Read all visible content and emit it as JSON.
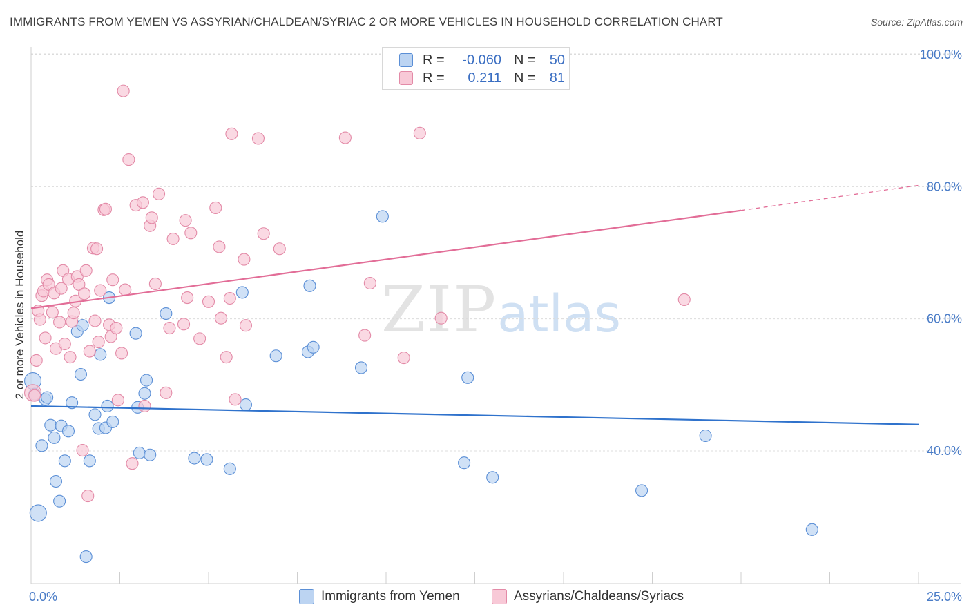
{
  "title": "IMMIGRANTS FROM YEMEN VS ASSYRIAN/CHALDEAN/SYRIAC 2 OR MORE VEHICLES IN HOUSEHOLD CORRELATION CHART",
  "source": "Source: ZipAtlas.com",
  "watermark": {
    "zip": "ZIP",
    "atlas": "atlas"
  },
  "legend": {
    "rows": [
      {
        "r_label": "R =",
        "r_value": "-0.060",
        "n_label": "N =",
        "n_value": "50",
        "fill": "#bcd4f2",
        "stroke": "#5b8fd6"
      },
      {
        "r_label": "R =",
        "r_value": "0.211",
        "n_label": "N =",
        "n_value": "81",
        "fill": "#f8c9d7",
        "stroke": "#e38aa7"
      }
    ]
  },
  "bottom_legend": {
    "series1": "Immigrants from Yemen",
    "series2": "Assyrians/Chaldeans/Syriacs"
  },
  "colors": {
    "blue_fill": "#bcd4f2",
    "blue_stroke": "#5b8fd6",
    "blue_line": "#2f72cc",
    "pink_fill": "#f8c9d7",
    "pink_stroke": "#e38aa7",
    "pink_line": "#e26d97",
    "tick_text": "#4a7cc7",
    "grid": "#dcdcdc"
  },
  "chart_data": {
    "type": "scatter",
    "title": "IMMIGRANTS FROM YEMEN VS ASSYRIAN/CHALDEAN/SYRIAC 2 OR MORE VEHICLES IN HOUSEHOLD CORRELATION CHART",
    "xlabel": "",
    "ylabel": "2 or more Vehicles in Household",
    "xlim": [
      0,
      25
    ],
    "ylim": [
      20,
      102
    ],
    "x_tick_labels": [
      {
        "value": 0,
        "label": "0.0%"
      },
      {
        "value": 25,
        "label": "25.0%"
      }
    ],
    "x_minor_ticks": [
      2.5,
      5,
      7.5,
      10,
      12.5,
      15,
      17.5,
      20,
      22.5,
      25
    ],
    "y_ticks": [
      {
        "value": 40,
        "label": "40.0%"
      },
      {
        "value": 60,
        "label": "60.0%"
      },
      {
        "value": 80,
        "label": "80.0%"
      },
      {
        "value": 100,
        "label": "100.0%"
      }
    ],
    "series": [
      {
        "name": "Immigrants from Yemen",
        "color": "#5b8fd6",
        "trend": {
          "x": [
            0,
            25
          ],
          "y": [
            46.8,
            44.0
          ]
        },
        "points": [
          {
            "x": 0.05,
            "y": 50.6,
            "big": true
          },
          {
            "x": 0.1,
            "y": 48.6
          },
          {
            "x": 0.2,
            "y": 30.6,
            "big": true
          },
          {
            "x": 0.3,
            "y": 40.8
          },
          {
            "x": 0.4,
            "y": 47.8
          },
          {
            "x": 0.45,
            "y": 48.1
          },
          {
            "x": 0.55,
            "y": 43.9
          },
          {
            "x": 0.65,
            "y": 42.0
          },
          {
            "x": 0.7,
            "y": 35.4
          },
          {
            "x": 0.8,
            "y": 32.4
          },
          {
            "x": 0.85,
            "y": 43.8
          },
          {
            "x": 0.95,
            "y": 38.5
          },
          {
            "x": 1.05,
            "y": 43.0
          },
          {
            "x": 1.15,
            "y": 47.3
          },
          {
            "x": 1.3,
            "y": 58.1
          },
          {
            "x": 1.4,
            "y": 51.6
          },
          {
            "x": 1.45,
            "y": 59.0
          },
          {
            "x": 1.55,
            "y": 24.0
          },
          {
            "x": 1.65,
            "y": 38.5
          },
          {
            "x": 1.8,
            "y": 45.5
          },
          {
            "x": 1.9,
            "y": 43.4
          },
          {
            "x": 1.95,
            "y": 54.6
          },
          {
            "x": 2.1,
            "y": 43.5
          },
          {
            "x": 2.15,
            "y": 46.8
          },
          {
            "x": 2.2,
            "y": 63.2
          },
          {
            "x": 2.3,
            "y": 44.4
          },
          {
            "x": 2.95,
            "y": 57.8
          },
          {
            "x": 3.0,
            "y": 46.6
          },
          {
            "x": 3.05,
            "y": 39.7
          },
          {
            "x": 3.2,
            "y": 48.7
          },
          {
            "x": 3.25,
            "y": 50.7
          },
          {
            "x": 3.35,
            "y": 39.4
          },
          {
            "x": 3.8,
            "y": 60.8
          },
          {
            "x": 4.6,
            "y": 38.9
          },
          {
            "x": 4.95,
            "y": 38.7
          },
          {
            "x": 5.6,
            "y": 37.3
          },
          {
            "x": 5.95,
            "y": 64.0
          },
          {
            "x": 6.05,
            "y": 47.0
          },
          {
            "x": 6.9,
            "y": 54.4
          },
          {
            "x": 7.8,
            "y": 55.0
          },
          {
            "x": 7.85,
            "y": 65.0
          },
          {
            "x": 7.95,
            "y": 55.7
          },
          {
            "x": 9.3,
            "y": 52.6
          },
          {
            "x": 9.9,
            "y": 75.5
          },
          {
            "x": 12.2,
            "y": 38.2
          },
          {
            "x": 12.3,
            "y": 51.1
          },
          {
            "x": 13.0,
            "y": 36.0
          },
          {
            "x": 17.2,
            "y": 34.0
          },
          {
            "x": 19.0,
            "y": 42.3
          },
          {
            "x": 22.0,
            "y": 28.1
          }
        ]
      },
      {
        "name": "Assyrians/Chaldeans/Syriacs",
        "color": "#e38aa7",
        "trend": {
          "x": [
            0,
            20
          ],
          "y": [
            61.6,
            76.4
          ]
        },
        "trend_dashed": {
          "x": [
            20,
            25
          ],
          "y": [
            76.4,
            80.2
          ]
        },
        "points": [
          {
            "x": 0.05,
            "y": 48.8,
            "big": true
          },
          {
            "x": 0.15,
            "y": 53.7
          },
          {
            "x": 0.2,
            "y": 61.2
          },
          {
            "x": 0.25,
            "y": 59.9
          },
          {
            "x": 0.3,
            "y": 63.5
          },
          {
            "x": 0.35,
            "y": 64.2
          },
          {
            "x": 0.4,
            "y": 57.1
          },
          {
            "x": 0.45,
            "y": 65.9
          },
          {
            "x": 0.5,
            "y": 65.2
          },
          {
            "x": 0.6,
            "y": 61.0
          },
          {
            "x": 0.65,
            "y": 63.9
          },
          {
            "x": 0.7,
            "y": 55.5
          },
          {
            "x": 0.8,
            "y": 59.5
          },
          {
            "x": 0.85,
            "y": 64.6
          },
          {
            "x": 0.9,
            "y": 67.3
          },
          {
            "x": 0.95,
            "y": 56.2
          },
          {
            "x": 1.05,
            "y": 66.0
          },
          {
            "x": 1.1,
            "y": 54.2
          },
          {
            "x": 1.15,
            "y": 59.6
          },
          {
            "x": 1.2,
            "y": 60.9
          },
          {
            "x": 1.25,
            "y": 62.7
          },
          {
            "x": 1.3,
            "y": 66.4
          },
          {
            "x": 1.35,
            "y": 65.2
          },
          {
            "x": 1.45,
            "y": 40.1
          },
          {
            "x": 1.5,
            "y": 63.8
          },
          {
            "x": 1.55,
            "y": 67.3
          },
          {
            "x": 1.6,
            "y": 33.2
          },
          {
            "x": 1.65,
            "y": 55.1
          },
          {
            "x": 1.75,
            "y": 70.7
          },
          {
            "x": 1.8,
            "y": 59.7
          },
          {
            "x": 1.85,
            "y": 70.6
          },
          {
            "x": 1.9,
            "y": 56.5
          },
          {
            "x": 1.95,
            "y": 64.3
          },
          {
            "x": 2.05,
            "y": 76.5
          },
          {
            "x": 2.1,
            "y": 76.6
          },
          {
            "x": 2.2,
            "y": 59.1
          },
          {
            "x": 2.25,
            "y": 57.3
          },
          {
            "x": 2.3,
            "y": 65.9
          },
          {
            "x": 2.4,
            "y": 58.6
          },
          {
            "x": 2.45,
            "y": 47.7
          },
          {
            "x": 2.55,
            "y": 54.8
          },
          {
            "x": 2.6,
            "y": 94.5
          },
          {
            "x": 2.65,
            "y": 64.4
          },
          {
            "x": 2.75,
            "y": 84.1
          },
          {
            "x": 2.85,
            "y": 38.1
          },
          {
            "x": 2.95,
            "y": 77.2
          },
          {
            "x": 3.15,
            "y": 77.6
          },
          {
            "x": 3.2,
            "y": 46.8
          },
          {
            "x": 3.35,
            "y": 74.1
          },
          {
            "x": 3.4,
            "y": 75.3
          },
          {
            "x": 3.5,
            "y": 65.3
          },
          {
            "x": 3.6,
            "y": 78.9
          },
          {
            "x": 3.8,
            "y": 48.8
          },
          {
            "x": 3.9,
            "y": 58.6
          },
          {
            "x": 4.0,
            "y": 72.1
          },
          {
            "x": 4.3,
            "y": 59.2
          },
          {
            "x": 4.35,
            "y": 74.9
          },
          {
            "x": 4.4,
            "y": 63.2
          },
          {
            "x": 4.5,
            "y": 73.0
          },
          {
            "x": 4.75,
            "y": 57.0
          },
          {
            "x": 5.0,
            "y": 62.6
          },
          {
            "x": 5.2,
            "y": 76.8
          },
          {
            "x": 5.3,
            "y": 70.9
          },
          {
            "x": 5.35,
            "y": 60.1
          },
          {
            "x": 5.5,
            "y": 54.2
          },
          {
            "x": 5.6,
            "y": 63.1
          },
          {
            "x": 5.65,
            "y": 88.0
          },
          {
            "x": 5.75,
            "y": 47.8
          },
          {
            "x": 6.0,
            "y": 69.0
          },
          {
            "x": 6.05,
            "y": 59.0
          },
          {
            "x": 6.4,
            "y": 87.3
          },
          {
            "x": 6.55,
            "y": 72.9
          },
          {
            "x": 7.0,
            "y": 70.6
          },
          {
            "x": 8.85,
            "y": 87.4
          },
          {
            "x": 9.4,
            "y": 57.5
          },
          {
            "x": 9.55,
            "y": 65.4
          },
          {
            "x": 10.5,
            "y": 54.1
          },
          {
            "x": 10.95,
            "y": 88.1
          },
          {
            "x": 11.55,
            "y": 60.1
          },
          {
            "x": 18.4,
            "y": 62.9
          },
          {
            "x": 0.1,
            "y": 48.4
          }
        ]
      }
    ]
  }
}
